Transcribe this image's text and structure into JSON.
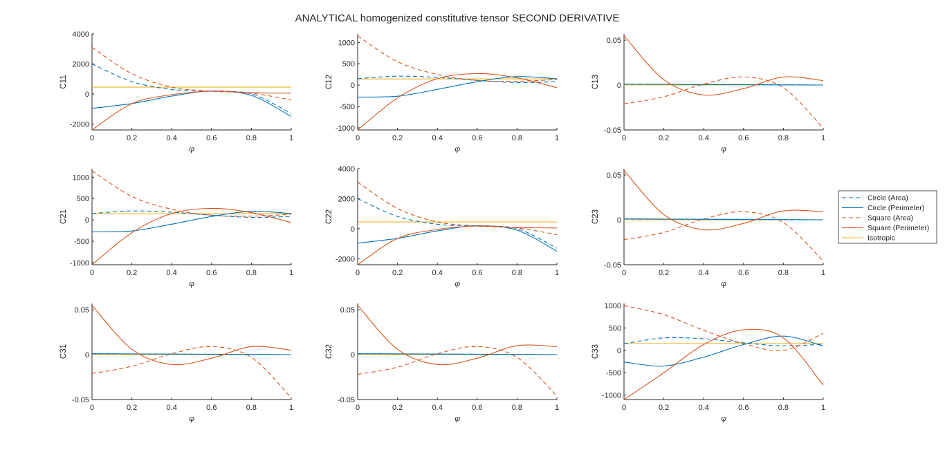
{
  "figure": {
    "title": "ANALYTICAL homogenized constitutive tensor SECOND DERIVATIVE",
    "xlabel": "φ"
  },
  "legend": {
    "items": [
      {
        "label": "Circle (Area)",
        "color": "#0072BD",
        "dash": true
      },
      {
        "label": "Circle (Perimeter)",
        "color": "#0072BD",
        "dash": false
      },
      {
        "label": "Square (Area)",
        "color": "#D95319",
        "dash": true
      },
      {
        "label": "Square (Perimeter)",
        "color": "#D95319",
        "dash": false
      },
      {
        "label": "Isotropic",
        "color": "#EDB120",
        "dash": false
      }
    ]
  },
  "chart_data": [
    {
      "type": "line",
      "ylabel": "C11",
      "xlim": [
        0,
        1
      ],
      "ylim": [
        -2400,
        4000
      ],
      "xticks": [
        "0",
        "0.2",
        "0.4",
        "0.6",
        "0.8",
        "1"
      ],
      "yticks": [
        -2000,
        0,
        2000,
        4000
      ],
      "series": [
        {
          "name": "Circle (Area)",
          "x": [
            0,
            0.2,
            0.4,
            0.6,
            0.8,
            1
          ],
          "y": [
            2000,
            820,
            300,
            180,
            0,
            -1300
          ]
        },
        {
          "name": "Circle (Perimeter)",
          "x": [
            0,
            0.2,
            0.4,
            0.6,
            0.8,
            1
          ],
          "y": [
            -960,
            -640,
            -150,
            200,
            -100,
            -1500
          ]
        },
        {
          "name": "Square (Area)",
          "x": [
            0,
            0.2,
            0.4,
            0.6,
            0.8,
            1
          ],
          "y": [
            3100,
            1350,
            450,
            180,
            50,
            -400
          ]
        },
        {
          "name": "Square (Perimeter)",
          "x": [
            0,
            0.2,
            0.4,
            0.6,
            0.8,
            1
          ],
          "y": [
            -2400,
            -650,
            -50,
            180,
            80,
            50
          ]
        },
        {
          "name": "Isotropic",
          "x": [
            0,
            1
          ],
          "y": [
            450,
            450
          ]
        }
      ]
    },
    {
      "type": "line",
      "ylabel": "C12",
      "xlim": [
        0,
        1
      ],
      "ylim": [
        -1050,
        1200
      ],
      "xticks": [
        "0",
        "0.2",
        "0.4",
        "0.6",
        "0.8",
        "1"
      ],
      "yticks": [
        -1000,
        -500,
        0,
        500,
        1000
      ],
      "series": [
        {
          "name": "Circle (Area)",
          "x": [
            0,
            0.2,
            0.4,
            0.6,
            0.8,
            1
          ],
          "y": [
            150,
            210,
            180,
            110,
            60,
            80
          ]
        },
        {
          "name": "Circle (Perimeter)",
          "x": [
            0,
            0.2,
            0.4,
            0.6,
            0.8,
            1
          ],
          "y": [
            -280,
            -260,
            -100,
            80,
            200,
            150
          ]
        },
        {
          "name": "Square (Area)",
          "x": [
            0,
            0.2,
            0.4,
            0.6,
            0.8,
            1
          ],
          "y": [
            1150,
            550,
            250,
            110,
            90,
            130
          ]
        },
        {
          "name": "Square (Perimeter)",
          "x": [
            0,
            0.2,
            0.4,
            0.6,
            0.8,
            1
          ],
          "y": [
            -1050,
            -300,
            150,
            270,
            170,
            -60
          ]
        },
        {
          "name": "Isotropic",
          "x": [
            0,
            1
          ],
          "y": [
            145,
            145
          ]
        }
      ]
    },
    {
      "type": "line",
      "ylabel": "C13",
      "xlim": [
        0,
        1
      ],
      "ylim": [
        -0.05,
        0.057
      ],
      "xticks": [
        "0",
        "0.2",
        "0.4",
        "0.6",
        "0.8",
        "1"
      ],
      "yticks": [
        -0.05,
        0,
        0.05
      ],
      "series": [
        {
          "name": "Circle (Area)",
          "x": [
            0,
            1
          ],
          "y": [
            0.001,
            0
          ]
        },
        {
          "name": "Circle (Perimeter)",
          "x": [
            0,
            1
          ],
          "y": [
            0.001,
            0
          ]
        },
        {
          "name": "Square (Area)",
          "x": [
            0,
            0.2,
            0.4,
            0.6,
            0.8,
            1
          ],
          "y": [
            -0.021,
            -0.013,
            0.001,
            0.009,
            -0.003,
            -0.048
          ]
        },
        {
          "name": "Square (Perimeter)",
          "x": [
            0,
            0.2,
            0.4,
            0.6,
            0.8,
            1
          ],
          "y": [
            0.055,
            0.006,
            -0.011,
            -0.004,
            0.009,
            0.005
          ]
        },
        {
          "name": "Isotropic",
          "x": [
            0,
            1
          ],
          "y": [
            0,
            0
          ]
        }
      ]
    },
    {
      "type": "line",
      "ylabel": "C21",
      "xlim": [
        0,
        1
      ],
      "ylim": [
        -1050,
        1200
      ],
      "xticks": [
        "0",
        "0.2",
        "0.4",
        "0.6",
        "0.8",
        "1"
      ],
      "yticks": [
        -1000,
        -500,
        0,
        500,
        1000
      ],
      "series": [
        {
          "name": "Circle (Area)",
          "x": [
            0,
            0.2,
            0.4,
            0.6,
            0.8,
            1
          ],
          "y": [
            150,
            210,
            180,
            110,
            60,
            80
          ]
        },
        {
          "name": "Circle (Perimeter)",
          "x": [
            0,
            0.2,
            0.4,
            0.6,
            0.8,
            1
          ],
          "y": [
            -280,
            -260,
            -100,
            80,
            200,
            150
          ]
        },
        {
          "name": "Square (Area)",
          "x": [
            0,
            0.2,
            0.4,
            0.6,
            0.8,
            1
          ],
          "y": [
            1150,
            550,
            250,
            110,
            90,
            130
          ]
        },
        {
          "name": "Square (Perimeter)",
          "x": [
            0,
            0.2,
            0.4,
            0.6,
            0.8,
            1
          ],
          "y": [
            -1050,
            -300,
            150,
            270,
            170,
            -60
          ]
        },
        {
          "name": "Isotropic",
          "x": [
            0,
            1
          ],
          "y": [
            145,
            145
          ]
        }
      ]
    },
    {
      "type": "line",
      "ylabel": "C22",
      "xlim": [
        0,
        1
      ],
      "ylim": [
        -2400,
        4000
      ],
      "xticks": [
        "0",
        "0.2",
        "0.4",
        "0.6",
        "0.8",
        "1"
      ],
      "yticks": [
        -2000,
        0,
        2000,
        4000
      ],
      "series": [
        {
          "name": "Circle (Area)",
          "x": [
            0,
            0.2,
            0.4,
            0.6,
            0.8,
            1
          ],
          "y": [
            2000,
            820,
            300,
            180,
            0,
            -1300
          ]
        },
        {
          "name": "Circle (Perimeter)",
          "x": [
            0,
            0.2,
            0.4,
            0.6,
            0.8,
            1
          ],
          "y": [
            -960,
            -640,
            -150,
            200,
            -100,
            -1500
          ]
        },
        {
          "name": "Square (Area)",
          "x": [
            0,
            0.2,
            0.4,
            0.6,
            0.8,
            1
          ],
          "y": [
            3100,
            1350,
            450,
            180,
            50,
            -400
          ]
        },
        {
          "name": "Square (Perimeter)",
          "x": [
            0,
            0.2,
            0.4,
            0.6,
            0.8,
            1
          ],
          "y": [
            -2400,
            -650,
            -50,
            180,
            80,
            50
          ]
        },
        {
          "name": "Isotropic",
          "x": [
            0,
            1
          ],
          "y": [
            450,
            450
          ]
        }
      ]
    },
    {
      "type": "line",
      "ylabel": "C23",
      "xlim": [
        0,
        1
      ],
      "ylim": [
        -0.05,
        0.057
      ],
      "xticks": [
        "0",
        "0.2",
        "0.4",
        "0.6",
        "0.8",
        "1"
      ],
      "yticks": [
        -0.05,
        0,
        0.05
      ],
      "series": [
        {
          "name": "Circle (Area)",
          "x": [
            0,
            1
          ],
          "y": [
            0.001,
            0
          ]
        },
        {
          "name": "Circle (Perimeter)",
          "x": [
            0,
            1
          ],
          "y": [
            0.001,
            0
          ]
        },
        {
          "name": "Square (Area)",
          "x": [
            0,
            0.2,
            0.4,
            0.6,
            0.8,
            1
          ],
          "y": [
            -0.022,
            -0.014,
            0.001,
            0.009,
            -0.003,
            -0.046
          ]
        },
        {
          "name": "Square (Perimeter)",
          "x": [
            0,
            0.2,
            0.4,
            0.6,
            0.8,
            1
          ],
          "y": [
            0.055,
            0.006,
            -0.011,
            -0.004,
            0.01,
            0.009
          ]
        },
        {
          "name": "Isotropic",
          "x": [
            0,
            1
          ],
          "y": [
            0,
            0
          ]
        }
      ]
    },
    {
      "type": "line",
      "ylabel": "C31",
      "xlim": [
        0,
        1
      ],
      "ylim": [
        -0.05,
        0.057
      ],
      "xticks": [
        "0",
        "0.2",
        "0.4",
        "0.6",
        "0.8",
        "1"
      ],
      "yticks": [
        -0.05,
        0,
        0.05
      ],
      "series": [
        {
          "name": "Circle (Area)",
          "x": [
            0,
            1
          ],
          "y": [
            0.001,
            0
          ]
        },
        {
          "name": "Circle (Perimeter)",
          "x": [
            0,
            1
          ],
          "y": [
            0.001,
            0
          ]
        },
        {
          "name": "Square (Area)",
          "x": [
            0,
            0.2,
            0.4,
            0.6,
            0.8,
            1
          ],
          "y": [
            -0.021,
            -0.013,
            0.001,
            0.009,
            -0.003,
            -0.048
          ]
        },
        {
          "name": "Square (Perimeter)",
          "x": [
            0,
            0.2,
            0.4,
            0.6,
            0.8,
            1
          ],
          "y": [
            0.055,
            0.006,
            -0.011,
            -0.004,
            0.009,
            0.005
          ]
        },
        {
          "name": "Isotropic",
          "x": [
            0,
            1
          ],
          "y": [
            0,
            0
          ]
        }
      ]
    },
    {
      "type": "line",
      "ylabel": "C32",
      "xlim": [
        0,
        1
      ],
      "ylim": [
        -0.05,
        0.057
      ],
      "xticks": [
        "0",
        "0.2",
        "0.4",
        "0.6",
        "0.8",
        "1"
      ],
      "yticks": [
        -0.05,
        0,
        0.05
      ],
      "series": [
        {
          "name": "Circle (Area)",
          "x": [
            0,
            1
          ],
          "y": [
            0.001,
            0
          ]
        },
        {
          "name": "Circle (Perimeter)",
          "x": [
            0,
            1
          ],
          "y": [
            0.001,
            0
          ]
        },
        {
          "name": "Square (Area)",
          "x": [
            0,
            0.2,
            0.4,
            0.6,
            0.8,
            1
          ],
          "y": [
            -0.022,
            -0.014,
            0.001,
            0.009,
            -0.003,
            -0.046
          ]
        },
        {
          "name": "Square (Perimeter)",
          "x": [
            0,
            0.2,
            0.4,
            0.6,
            0.8,
            1
          ],
          "y": [
            0.055,
            0.006,
            -0.011,
            -0.004,
            0.01,
            0.009
          ]
        },
        {
          "name": "Isotropic",
          "x": [
            0,
            1
          ],
          "y": [
            0,
            0
          ]
        }
      ]
    },
    {
      "type": "line",
      "ylabel": "C33",
      "xlim": [
        0,
        1
      ],
      "ylim": [
        -1100,
        1050
      ],
      "xticks": [
        "0",
        "0.2",
        "0.4",
        "0.6",
        "0.8",
        "1"
      ],
      "yticks": [
        -1000,
        -500,
        0,
        500,
        1000
      ],
      "series": [
        {
          "name": "Circle (Area)",
          "x": [
            0,
            0.2,
            0.4,
            0.6,
            0.8,
            1
          ],
          "y": [
            150,
            280,
            260,
            170,
            100,
            140
          ]
        },
        {
          "name": "Circle (Perimeter)",
          "x": [
            0,
            0.2,
            0.4,
            0.6,
            0.8,
            1
          ],
          "y": [
            -260,
            -350,
            -150,
            130,
            320,
            100
          ]
        },
        {
          "name": "Square (Area)",
          "x": [
            0,
            0.2,
            0.4,
            0.6,
            0.8,
            1
          ],
          "y": [
            1000,
            800,
            450,
            150,
            0,
            380
          ]
        },
        {
          "name": "Square (Perimeter)",
          "x": [
            0,
            0.2,
            0.4,
            0.6,
            0.8,
            1
          ],
          "y": [
            -1100,
            -500,
            130,
            460,
            280,
            -780
          ]
        },
        {
          "name": "Isotropic",
          "x": [
            0,
            1
          ],
          "y": [
            150,
            150
          ]
        }
      ]
    }
  ]
}
